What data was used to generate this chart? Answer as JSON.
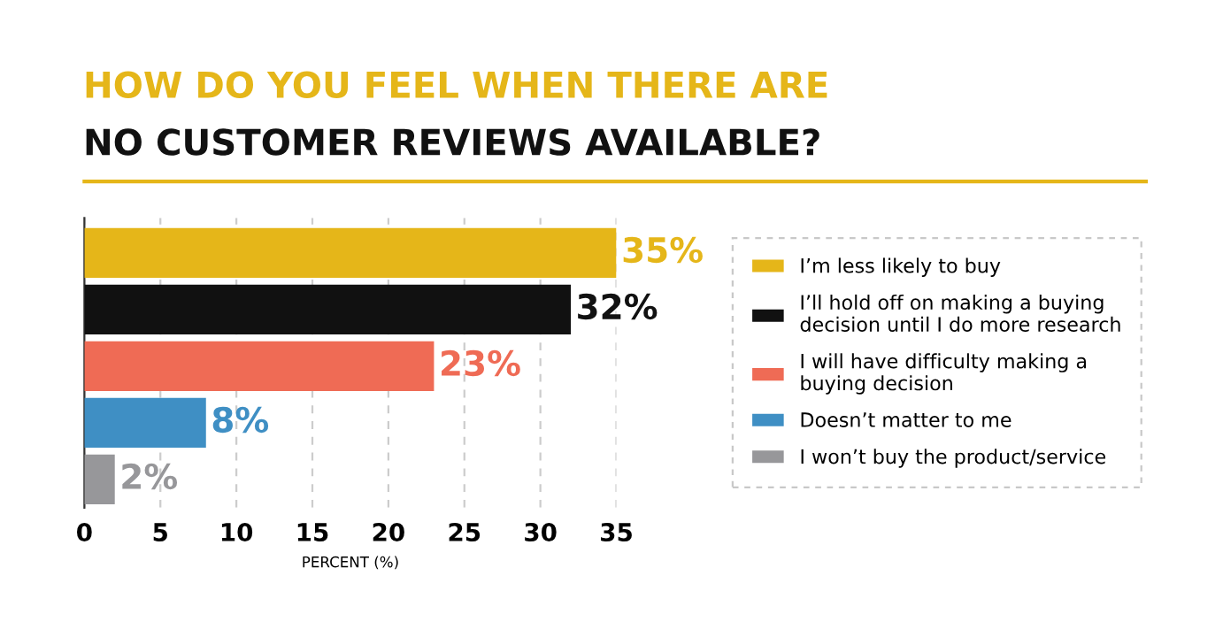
{
  "chart_data": {
    "type": "bar",
    "orientation": "horizontal",
    "title": "HOW DO YOU FEEL WHEN THERE ARE",
    "subtitle": "NO CUSTOMER REVIEWS AVAILABLE?",
    "xlabel": "PERCENT (%)",
    "categories": [
      null,
      null,
      null,
      null,
      null
    ],
    "series": [
      {
        "name": "I’m less likely to buy",
        "color": "#e5b619",
        "values": [
          35,
          null,
          null,
          null,
          null
        ],
        "value_labels": [
          "35%",
          null,
          null,
          null,
          null
        ]
      },
      {
        "name": "I’ll hold off on making a buying decision until I do more research",
        "color": "#111111",
        "values": [
          null,
          32,
          null,
          null,
          null
        ],
        "value_labels": [
          null,
          "32%",
          null,
          null,
          null
        ]
      },
      {
        "name": "I will have difficulty making a buying decision",
        "color": "#ef6b55",
        "values": [
          null,
          null,
          23,
          null,
          null
        ],
        "value_labels": [
          null,
          null,
          "23%",
          null,
          null
        ]
      },
      {
        "name": "Doesn’t matter to me",
        "color": "#3f8fc4",
        "values": [
          null,
          null,
          null,
          8,
          null
        ],
        "value_labels": [
          null,
          null,
          null,
          "8%",
          null
        ]
      },
      {
        "name": "I won’t buy the product/service",
        "color": "#97979a",
        "values": [
          null,
          null,
          null,
          null,
          2
        ],
        "value_labels": [
          null,
          null,
          null,
          null,
          "2%"
        ]
      }
    ],
    "xlim": [
      0,
      35
    ],
    "xticks": [
      0,
      5,
      10,
      15,
      20,
      25,
      30,
      35
    ],
    "grid": "x",
    "legend": "right"
  }
}
